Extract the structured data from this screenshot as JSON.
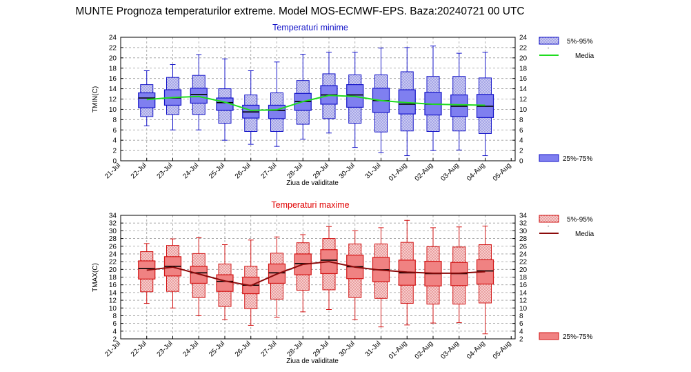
{
  "page": {
    "title": "MUNTE  Prognoza temperaturilor extreme.  Model MOS-ECMWF-EPS. Baza:20240721 00 UTC"
  },
  "dates": [
    "21-Jul",
    "22-Jul",
    "23-Jul",
    "24-Jul",
    "25-Jul",
    "26-Jul",
    "27-Jul",
    "28-Jul",
    "29-Jul",
    "30-Jul",
    "31-Jul",
    "01-Aug",
    "02-Aug",
    "03-Aug",
    "04-Aug",
    "05-Aug"
  ],
  "colors": {
    "tmin_outer": "#c9c9f2",
    "tmin_inner": "#7f7ff0",
    "tmin_edge": "#1414c8",
    "tmin_mean": "#1fdc1f",
    "tmin_title": "#1414c8",
    "tmax_outer": "#f7cccc",
    "tmax_inner": "#f08282",
    "tmax_edge": "#d21414",
    "tmax_mean": "#8b0a0a",
    "tmax_title": "#e00000"
  },
  "chart_data": [
    {
      "type": "boxplot",
      "title": "Temperaturi minime",
      "xlabel": "Ziua de validitate",
      "ylabel": "TMIN(C)",
      "ylim": [
        0,
        24
      ],
      "yticks": [
        0,
        2,
        4,
        6,
        8,
        10,
        12,
        14,
        16,
        18,
        20,
        22,
        24
      ],
      "grid": true,
      "legend": {
        "outer": "5%-95%",
        "mean": "Media",
        "mean_mark": "-",
        "inner": "25%-75%"
      },
      "categories": [
        "22-Jul",
        "23-Jul",
        "24-Jul",
        "25-Jul",
        "26-Jul",
        "27-Jul",
        "28-Jul",
        "29-Jul",
        "30-Jul",
        "31-Jul",
        "01-Aug",
        "02-Aug",
        "03-Aug",
        "04-Aug"
      ],
      "whisker_low": [
        6.8,
        6.0,
        6.0,
        4.0,
        3.2,
        2.8,
        4.2,
        5.4,
        2.6,
        1.6,
        1.0,
        2.0,
        2.1,
        1.0
      ],
      "p5": [
        8.6,
        9.0,
        9.0,
        7.3,
        5.7,
        5.7,
        7.1,
        8.2,
        7.3,
        5.6,
        5.8,
        5.7,
        5.8,
        5.3
      ],
      "q1": [
        10.3,
        10.8,
        11.2,
        9.8,
        8.3,
        8.2,
        9.8,
        11.0,
        10.4,
        9.4,
        9.1,
        8.9,
        8.6,
        8.4
      ],
      "median": [
        12.2,
        12.2,
        12.9,
        11.3,
        9.5,
        9.8,
        11.5,
        12.8,
        12.8,
        11.7,
        11.0,
        11.0,
        10.6,
        10.6
      ],
      "q3": [
        13.2,
        13.8,
        14.1,
        12.2,
        10.8,
        10.8,
        13.1,
        14.6,
        14.8,
        14.1,
        13.8,
        13.3,
        12.8,
        12.9
      ],
      "p95": [
        14.8,
        16.2,
        16.6,
        14.0,
        12.8,
        13.2,
        15.6,
        16.9,
        16.7,
        16.7,
        17.3,
        16.4,
        16.4,
        16.1
      ],
      "whisker_high": [
        17.5,
        18.7,
        20.6,
        19.8,
        17.5,
        19.2,
        20.7,
        21.1,
        21.1,
        21.9,
        22.0,
        22.3,
        20.9,
        21.1
      ],
      "mean": [
        11.9,
        12.3,
        12.5,
        11.4,
        9.8,
        9.9,
        11.5,
        12.7,
        12.5,
        11.7,
        11.3,
        11.0,
        10.9,
        10.8
      ]
    },
    {
      "type": "boxplot",
      "title": "Temperaturi maxime",
      "xlabel": "Ziua de validitate",
      "ylabel": "TMAX(C)",
      "ylim": [
        2,
        34
      ],
      "yticks": [
        2,
        4,
        6,
        8,
        10,
        12,
        14,
        16,
        18,
        20,
        22,
        24,
        26,
        28,
        30,
        32,
        34
      ],
      "grid": true,
      "legend": {
        "outer": "5%-95%",
        "mean": "Media",
        "mean_mark": "-",
        "inner": "25%-75%"
      },
      "categories": [
        "22-Jul",
        "23-Jul",
        "24-Jul",
        "25-Jul",
        "26-Jul",
        "27-Jul",
        "28-Jul",
        "29-Jul",
        "30-Jul",
        "31-Jul",
        "01-Aug",
        "02-Aug",
        "03-Aug",
        "04-Aug"
      ],
      "whisker_low": [
        11.2,
        10.0,
        8.0,
        7.0,
        5.5,
        7.6,
        9.0,
        9.6,
        7.0,
        5.1,
        5.6,
        6.1,
        6.2,
        3.3
      ],
      "p5": [
        14.2,
        14.3,
        12.7,
        10.4,
        9.8,
        12.3,
        14.6,
        14.7,
        12.7,
        12.5,
        11.2,
        11.0,
        11.0,
        11.3
      ],
      "q1": [
        17.5,
        18.3,
        16.4,
        14.3,
        13.7,
        16.4,
        18.6,
        18.9,
        17.6,
        16.8,
        15.9,
        15.7,
        15.8,
        16.2
      ],
      "median": [
        20.2,
        20.8,
        19.1,
        16.9,
        15.9,
        19.1,
        21.5,
        22.4,
        20.7,
        19.9,
        19.1,
        18.9,
        18.9,
        19.6
      ],
      "q3": [
        22.2,
        23.3,
        20.8,
        18.6,
        18.0,
        21.4,
        24.0,
        25.1,
        23.7,
        23.1,
        22.4,
        22.1,
        21.8,
        22.5
      ],
      "p95": [
        24.6,
        26.2,
        24.1,
        21.4,
        20.8,
        24.2,
        26.9,
        28.0,
        26.6,
        26.6,
        27.0,
        25.9,
        25.8,
        26.4
      ],
      "whisker_high": [
        26.7,
        27.9,
        28.2,
        26.4,
        27.6,
        28.4,
        29.0,
        31.1,
        30.0,
        30.8,
        32.7,
        30.8,
        31.0,
        31.2
      ],
      "mean": [
        19.8,
        20.6,
        18.8,
        17.0,
        15.8,
        18.8,
        21.3,
        22.0,
        20.6,
        19.8,
        19.3,
        19.0,
        19.0,
        19.4
      ]
    }
  ]
}
